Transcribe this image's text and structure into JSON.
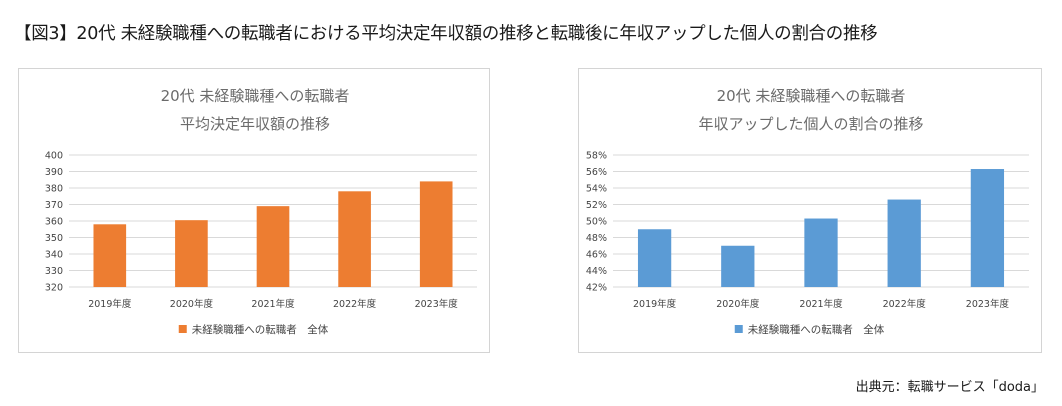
{
  "page": {
    "title": "【図3】20代 未経験職種への転職者における平均決定年収額の推移と転職後に年収アップした個人の割合の推移",
    "source": "出典元：転職サービス「doda」"
  },
  "chart_data": [
    {
      "type": "bar",
      "title_lines": [
        "20代 未経験職種への転職者",
        "平均決定年収額の推移"
      ],
      "categories": [
        "2019年度",
        "2020年度",
        "2021年度",
        "2022年度",
        "2023年度"
      ],
      "series": [
        {
          "name": "未経験職種への転職者　全体",
          "values": [
            358,
            360.5,
            369,
            378,
            384
          ],
          "color": "#ed7d31"
        }
      ],
      "ylim": [
        320,
        400
      ],
      "yticks": [
        320,
        330,
        340,
        350,
        360,
        370,
        380,
        390,
        400
      ],
      "ytick_format": "int",
      "grid": true,
      "legend_position": "bottom"
    },
    {
      "type": "bar",
      "title_lines": [
        "20代 未経験職種への転職者",
        "年収アップした個人の割合の推移"
      ],
      "categories": [
        "2019年度",
        "2020年度",
        "2021年度",
        "2022年度",
        "2023年度"
      ],
      "series": [
        {
          "name": "未経験職種への転職者　全体",
          "values": [
            49.0,
            47.0,
            50.3,
            52.6,
            56.3
          ],
          "color": "#5b9bd5"
        }
      ],
      "ylim": [
        42,
        58
      ],
      "yticks": [
        42,
        44,
        46,
        48,
        50,
        52,
        54,
        56,
        58
      ],
      "ytick_format": "percent",
      "grid": true,
      "legend_position": "bottom"
    }
  ]
}
